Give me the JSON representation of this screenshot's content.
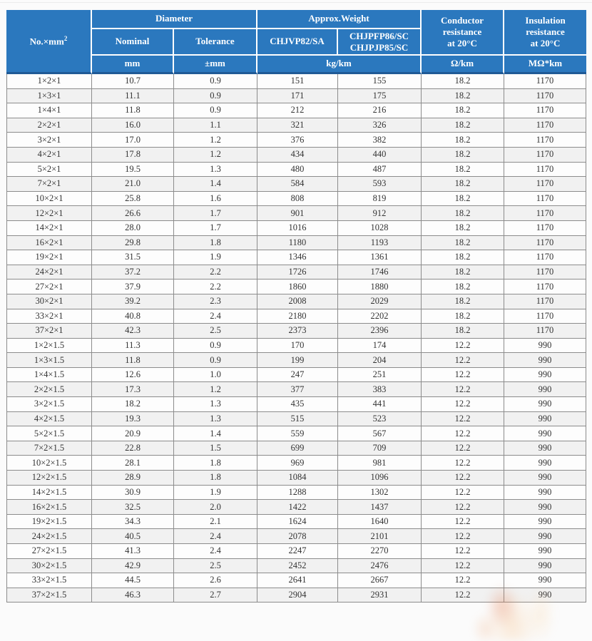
{
  "colors": {
    "header_blue": "#2b78be",
    "header_divider_navy": "#1f5a96",
    "grid_gray": "#8c8c8c",
    "stripe_gray": "#f1f1f1",
    "page_bg": "#fbfbfb",
    "header_text": "#ffffff",
    "body_text": "#333333"
  },
  "table": {
    "header": {
      "no_label": "No.×mm",
      "no_sup": "2",
      "diameter": "Diameter",
      "approx_weight": "Approx.Weight",
      "nominal": "Nominal",
      "tolerance": "Tolerance",
      "weight_col1": "CHJVP82/SA",
      "weight_col2_lines": [
        "CHJPFP86/SC",
        "CHJPJP85/SC"
      ],
      "conductor_lines": [
        "Conductor",
        "resistance",
        "at 20°C"
      ],
      "insulation_lines": [
        "Insulation",
        "resistance",
        "at 20°C"
      ],
      "units": {
        "mm": "mm",
        "tolerance_mm": "±mm",
        "weight": "kg/km",
        "conductor": "Ω/km",
        "insulation": "MΩ*km"
      }
    },
    "rows": [
      [
        "1×2×1",
        "10.7",
        "0.9",
        "151",
        "155",
        "18.2",
        "1170"
      ],
      [
        "1×3×1",
        "11.1",
        "0.9",
        "171",
        "175",
        "18.2",
        "1170"
      ],
      [
        "1×4×1",
        "11.8",
        "0.9",
        "212",
        "216",
        "18.2",
        "1170"
      ],
      [
        "2×2×1",
        "16.0",
        "1.1",
        "321",
        "326",
        "18.2",
        "1170"
      ],
      [
        "3×2×1",
        "17.0",
        "1.2",
        "376",
        "382",
        "18.2",
        "1170"
      ],
      [
        "4×2×1",
        "17.8",
        "1.2",
        "434",
        "440",
        "18.2",
        "1170"
      ],
      [
        "5×2×1",
        "19.5",
        "1.3",
        "480",
        "487",
        "18.2",
        "1170"
      ],
      [
        "7×2×1",
        "21.0",
        "1.4",
        "584",
        "593",
        "18.2",
        "1170"
      ],
      [
        "10×2×1",
        "25.8",
        "1.6",
        "808",
        "819",
        "18.2",
        "1170"
      ],
      [
        "12×2×1",
        "26.6",
        "1.7",
        "901",
        "912",
        "18.2",
        "1170"
      ],
      [
        "14×2×1",
        "28.0",
        "1.7",
        "1016",
        "1028",
        "18.2",
        "1170"
      ],
      [
        "16×2×1",
        "29.8",
        "1.8",
        "1180",
        "1193",
        "18.2",
        "1170"
      ],
      [
        "19×2×1",
        "31.5",
        "1.9",
        "1346",
        "1361",
        "18.2",
        "1170"
      ],
      [
        "24×2×1",
        "37.2",
        "2.2",
        "1726",
        "1746",
        "18.2",
        "1170"
      ],
      [
        "27×2×1",
        "37.9",
        "2.2",
        "1860",
        "1880",
        "18.2",
        "1170"
      ],
      [
        "30×2×1",
        "39.2",
        "2.3",
        "2008",
        "2029",
        "18.2",
        "1170"
      ],
      [
        "33×2×1",
        "40.8",
        "2.4",
        "2180",
        "2202",
        "18.2",
        "1170"
      ],
      [
        "37×2×1",
        "42.3",
        "2.5",
        "2373",
        "2396",
        "18.2",
        "1170"
      ],
      [
        "1×2×1.5",
        "11.3",
        "0.9",
        "170",
        "174",
        "12.2",
        "990"
      ],
      [
        "1×3×1.5",
        "11.8",
        "0.9",
        "199",
        "204",
        "12.2",
        "990"
      ],
      [
        "1×4×1.5",
        "12.6",
        "1.0",
        "247",
        "251",
        "12.2",
        "990"
      ],
      [
        "2×2×1.5",
        "17.3",
        "1.2",
        "377",
        "383",
        "12.2",
        "990"
      ],
      [
        "3×2×1.5",
        "18.2",
        "1.3",
        "435",
        "441",
        "12.2",
        "990"
      ],
      [
        "4×2×1.5",
        "19.3",
        "1.3",
        "515",
        "523",
        "12.2",
        "990"
      ],
      [
        "5×2×1.5",
        "20.9",
        "1.4",
        "559",
        "567",
        "12.2",
        "990"
      ],
      [
        "7×2×1.5",
        "22.8",
        "1.5",
        "699",
        "709",
        "12.2",
        "990"
      ],
      [
        "10×2×1.5",
        "28.1",
        "1.8",
        "969",
        "981",
        "12.2",
        "990"
      ],
      [
        "12×2×1.5",
        "28.9",
        "1.8",
        "1084",
        "1096",
        "12.2",
        "990"
      ],
      [
        "14×2×1.5",
        "30.9",
        "1.9",
        "1288",
        "1302",
        "12.2",
        "990"
      ],
      [
        "16×2×1.5",
        "32.5",
        "2.0",
        "1422",
        "1437",
        "12.2",
        "990"
      ],
      [
        "19×2×1.5",
        "34.3",
        "2.1",
        "1624",
        "1640",
        "12.2",
        "990"
      ],
      [
        "24×2×1.5",
        "40.5",
        "2.4",
        "2078",
        "2101",
        "12.2",
        "990"
      ],
      [
        "27×2×1.5",
        "41.3",
        "2.4",
        "2247",
        "2270",
        "12.2",
        "990"
      ],
      [
        "30×2×1.5",
        "42.9",
        "2.5",
        "2452",
        "2476",
        "12.2",
        "990"
      ],
      [
        "33×2×1.5",
        "44.5",
        "2.6",
        "2641",
        "2667",
        "12.2",
        "990"
      ],
      [
        "37×2×1.5",
        "46.3",
        "2.7",
        "2904",
        "2931",
        "12.2",
        "990"
      ]
    ]
  }
}
